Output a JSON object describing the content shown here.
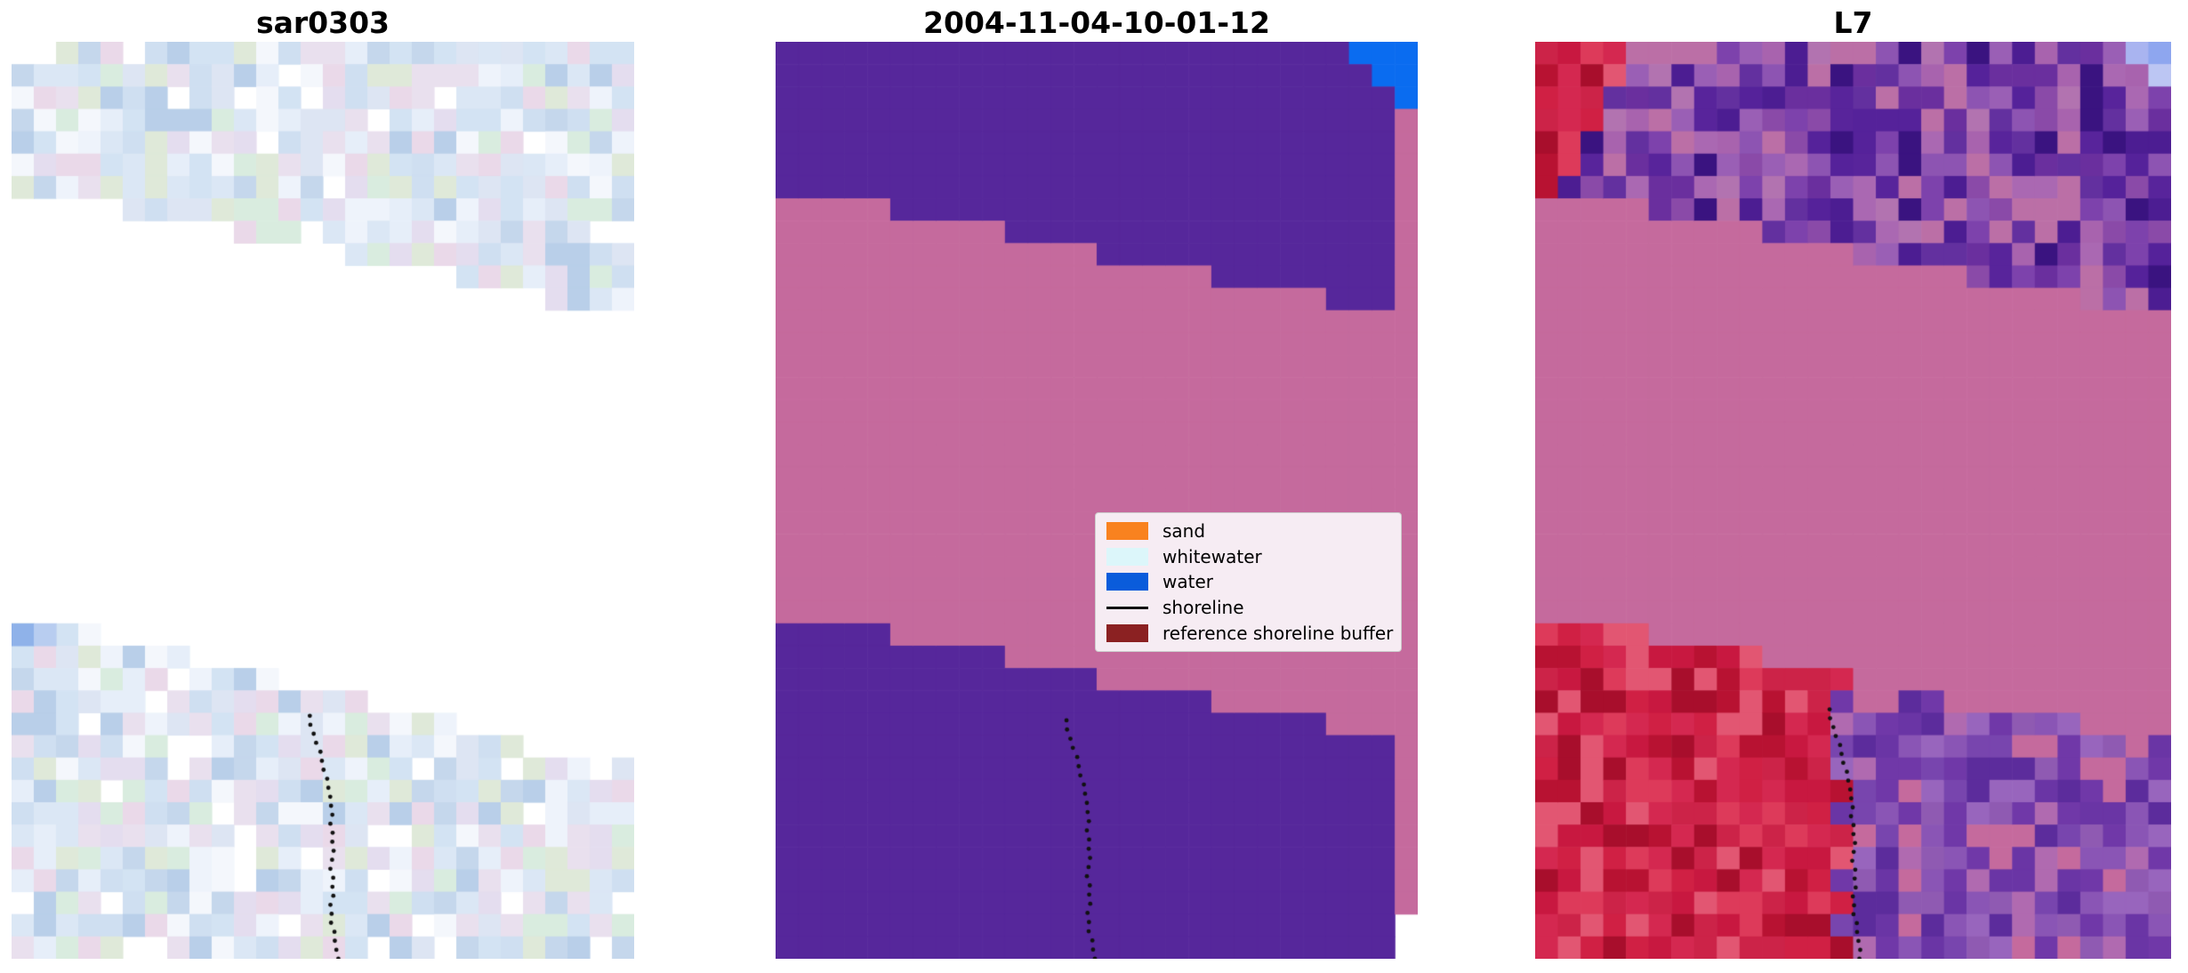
{
  "figure": {
    "background": "#ffffff",
    "panels": [
      {
        "title": "sar0303"
      },
      {
        "title": "2004-11-04-10-01-12"
      },
      {
        "title": "L7"
      }
    ],
    "legend": {
      "background": "#f6ecf3",
      "border_color": "#cccccc",
      "items": [
        {
          "label": "sand",
          "color": "#f9821f",
          "type": "patch"
        },
        {
          "label": "whitewater",
          "color": "#dcf6fa",
          "type": "patch"
        },
        {
          "label": "water",
          "color": "#0a5cdb",
          "type": "patch"
        },
        {
          "label": "shoreline",
          "color": "#111111",
          "type": "line"
        },
        {
          "label": "reference shoreline buffer",
          "color": "#8b2122",
          "type": "patch"
        }
      ]
    },
    "map_colors": {
      "purple": "#56279b",
      "mauve": "#c56a9d",
      "water_blue": "#0a6cf0",
      "red": "#cc1f47",
      "shoreline_dot": "#111111",
      "sar_base": "#d9e6f4"
    }
  },
  "chart_data": {
    "type": "heatmap",
    "panels": [
      {
        "title": "sar0303",
        "content": "SAR image tile: pale blue pixel noise in two diagonal data bands separated by a no-data gap; dotted shoreline in the lower band"
      },
      {
        "title": "2004-11-04-10-01-12",
        "content": "classified map: purple upper and lower regions, mauve reference-shoreline-buffer band across the middle, blue water patch at top right, dotted detected shoreline at bottom center"
      },
      {
        "title": "L7",
        "content": "Landsat 7 tile: purple/magenta pixel noise on top with a red streak at top left, solid mauve buffer band in the middle, red lower-left region and purple lower-right region split by the dotted shoreline"
      }
    ],
    "legend_entries": [
      "sand",
      "whitewater",
      "water",
      "shoreline",
      "reference shoreline buffer"
    ]
  }
}
